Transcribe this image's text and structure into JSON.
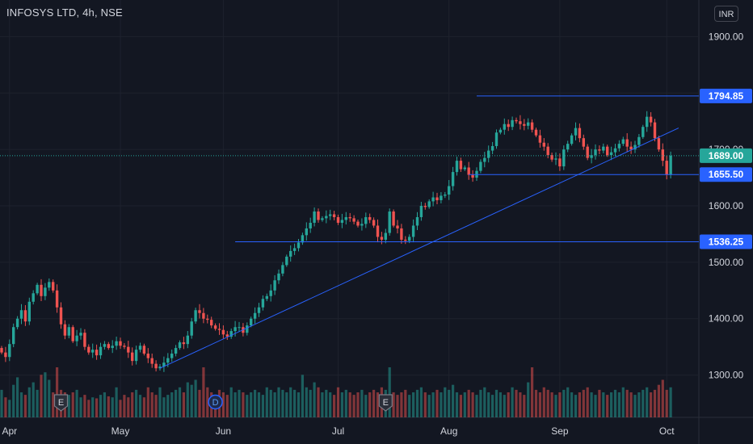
{
  "header": {
    "symbol_title": "INFOSYS LTD, 4h, NSE",
    "currency": "INR"
  },
  "colors": {
    "background": "#131722",
    "up": "#26a69a",
    "down": "#ef5350",
    "drawing": "#2962ff",
    "price_line": "#26a69a",
    "text": "#d1d4dc"
  },
  "chart_data": {
    "type": "candlestick",
    "ylim": [
      1225,
      1965
    ],
    "grid": true,
    "y_ticks": [
      1300,
      1400,
      1500,
      1600,
      1700,
      1800,
      1900
    ],
    "y_tick_labels": [
      "1300.00",
      "1400.00",
      "1500.00",
      "1600.00",
      "1700.00",
      "1800.00",
      "1900.00"
    ],
    "x_labels": [
      {
        "label": "Apr",
        "idx": 2
      },
      {
        "label": "May",
        "idx": 30
      },
      {
        "label": "Jun",
        "idx": 56
      },
      {
        "label": "Jul",
        "idx": 85
      },
      {
        "label": "Aug",
        "idx": 113
      },
      {
        "label": "Sep",
        "idx": 141
      },
      {
        "label": "Oct",
        "idx": 168
      }
    ],
    "closes": [
      1340,
      1332,
      1355,
      1385,
      1400,
      1415,
      1395,
      1430,
      1445,
      1460,
      1440,
      1455,
      1465,
      1450,
      1420,
      1390,
      1370,
      1385,
      1360,
      1370,
      1375,
      1350,
      1340,
      1345,
      1335,
      1350,
      1355,
      1348,
      1352,
      1360,
      1352,
      1350,
      1340,
      1325,
      1345,
      1352,
      1338,
      1330,
      1320,
      1312,
      1315,
      1322,
      1330,
      1338,
      1348,
      1358,
      1355,
      1370,
      1395,
      1415,
      1410,
      1400,
      1398,
      1388,
      1382,
      1380,
      1372,
      1368,
      1378,
      1385,
      1385,
      1375,
      1388,
      1400,
      1410,
      1420,
      1435,
      1440,
      1450,
      1468,
      1480,
      1495,
      1510,
      1520,
      1525,
      1535,
      1548,
      1560,
      1570,
      1590,
      1575,
      1578,
      1582,
      1585,
      1580,
      1570,
      1575,
      1580,
      1578,
      1572,
      1565,
      1568,
      1580,
      1575,
      1565,
      1545,
      1540,
      1552,
      1590,
      1565,
      1560,
      1540,
      1538,
      1545,
      1565,
      1580,
      1600,
      1598,
      1608,
      1615,
      1610,
      1618,
      1620,
      1635,
      1660,
      1680,
      1665,
      1668,
      1655,
      1650,
      1662,
      1678,
      1685,
      1698,
      1706,
      1730,
      1735,
      1745,
      1740,
      1752,
      1750,
      1745,
      1742,
      1748,
      1735,
      1725,
      1712,
      1705,
      1690,
      1682,
      1684,
      1670,
      1700,
      1710,
      1725,
      1738,
      1720,
      1705,
      1685,
      1690,
      1700,
      1698,
      1705,
      1690,
      1695,
      1702,
      1710,
      1718,
      1705,
      1700,
      1708,
      1722,
      1740,
      1758,
      1748,
      1720,
      1700,
      1680,
      1655,
      1689
    ],
    "volumes": [
      0.55,
      0.4,
      0.35,
      0.65,
      0.8,
      0.5,
      0.45,
      0.6,
      0.7,
      0.55,
      0.85,
      0.9,
      0.75,
      0.5,
      1.0,
      0.55,
      0.5,
      0.45,
      0.5,
      0.55,
      0.4,
      0.45,
      0.35,
      0.4,
      0.38,
      0.45,
      0.5,
      0.42,
      0.4,
      0.6,
      0.35,
      0.45,
      0.4,
      0.5,
      0.55,
      0.45,
      0.4,
      0.6,
      0.5,
      0.45,
      0.6,
      0.4,
      0.45,
      0.5,
      0.55,
      0.6,
      0.5,
      0.7,
      0.65,
      0.75,
      0.55,
      1.0,
      0.6,
      0.5,
      0.45,
      0.55,
      0.5,
      0.45,
      0.6,
      0.5,
      0.55,
      0.5,
      0.45,
      0.5,
      0.55,
      0.5,
      0.45,
      0.6,
      0.55,
      0.5,
      0.6,
      0.55,
      0.5,
      0.6,
      0.55,
      0.5,
      0.85,
      0.6,
      0.55,
      0.7,
      0.6,
      0.5,
      0.55,
      0.5,
      0.45,
      0.6,
      0.5,
      0.55,
      0.5,
      0.45,
      0.5,
      0.55,
      0.45,
      0.5,
      0.55,
      0.5,
      0.6,
      0.55,
      1.0,
      0.5,
      0.45,
      0.5,
      0.55,
      0.45,
      0.5,
      0.55,
      0.6,
      0.5,
      0.45,
      0.5,
      0.55,
      0.5,
      0.6,
      0.55,
      0.65,
      0.5,
      0.45,
      0.5,
      0.55,
      0.5,
      0.45,
      0.55,
      0.6,
      0.5,
      0.45,
      0.55,
      0.5,
      0.45,
      0.5,
      0.6,
      0.55,
      0.5,
      0.45,
      0.7,
      1.0,
      0.55,
      0.5,
      0.6,
      0.55,
      0.5,
      0.45,
      0.5,
      0.55,
      0.6,
      0.5,
      0.45,
      0.5,
      0.55,
      0.6,
      0.5,
      0.45,
      0.55,
      0.5,
      0.45,
      0.5,
      0.55,
      0.5,
      0.6,
      0.55,
      0.5,
      0.45,
      0.5,
      0.55,
      0.6,
      0.5,
      0.55,
      0.65,
      0.75,
      0.55,
      0.6
    ],
    "horizontal_lines": [
      {
        "price": 1794.85,
        "label": "1794.85",
        "from_idx": 120
      },
      {
        "price": 1655.5,
        "label": "1655.50",
        "from_idx": 118
      },
      {
        "price": 1536.25,
        "label": "1536.25",
        "from_idx": 59
      }
    ],
    "trendline": {
      "from": {
        "idx": 40,
        "price": 1312
      },
      "to": {
        "idx": 171,
        "price": 1738
      }
    },
    "last_price": {
      "price": 1689,
      "label": "1689.00"
    },
    "event_markers": [
      {
        "letter": "E",
        "idx": 15
      },
      {
        "letter": "D",
        "idx": 54
      },
      {
        "letter": "E",
        "idx": 97
      }
    ]
  }
}
